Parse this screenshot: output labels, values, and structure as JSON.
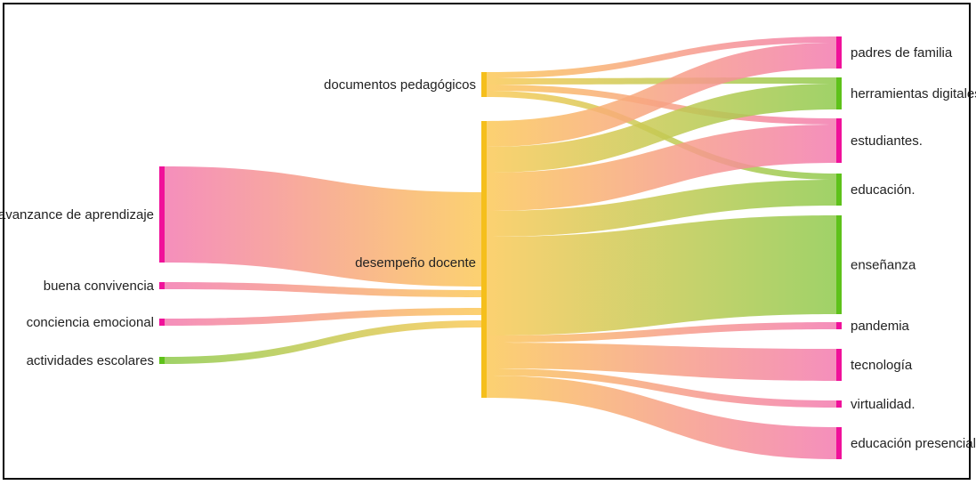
{
  "diagram": {
    "type": "sankey",
    "colors": {
      "pink": "#f0119a",
      "orange": "#f5bf1c",
      "green": "#5ec21a",
      "link_pink": "#f37bb0",
      "link_orange": "#fbc958",
      "link_green": "#8fca4e"
    },
    "nodes": [
      {
        "id": "avanzance",
        "label": "avanzance de aprendizaje",
        "color": "pink"
      },
      {
        "id": "buena",
        "label": "buena convivencia",
        "color": "pink"
      },
      {
        "id": "conciencia",
        "label": "conciencia emocional",
        "color": "pink"
      },
      {
        "id": "actividades",
        "label": "actividades escolares",
        "color": "green"
      },
      {
        "id": "documentos",
        "label": "documentos pedagógicos",
        "color": "orange"
      },
      {
        "id": "desempeno",
        "label": "desempeño docente",
        "color": "orange"
      },
      {
        "id": "padres",
        "label": "padres de familia",
        "color": "pink"
      },
      {
        "id": "herramientas",
        "label": "herramientas digitales",
        "color": "green"
      },
      {
        "id": "estudiantes",
        "label": "estudiantes.",
        "color": "pink"
      },
      {
        "id": "educacion",
        "label": "educación.",
        "color": "green"
      },
      {
        "id": "ensenanza",
        "label": "enseñanza",
        "color": "green"
      },
      {
        "id": "pandemia",
        "label": "pandemia",
        "color": "pink"
      },
      {
        "id": "tecnologia",
        "label": "tecnología",
        "color": "pink"
      },
      {
        "id": "virtualidad",
        "label": "virtualidad.",
        "color": "pink"
      },
      {
        "id": "presencial",
        "label": "educación presencial",
        "color": "pink"
      }
    ],
    "links": [
      {
        "source": "avanzance",
        "target": "desempeno",
        "value": 27
      },
      {
        "source": "buena",
        "target": "desempeno",
        "value": 2
      },
      {
        "source": "conciencia",
        "target": "desempeno",
        "value": 2
      },
      {
        "source": "actividades",
        "target": "desempeno",
        "value": 2
      },
      {
        "source": "documentos",
        "target": "padres",
        "value": 2
      },
      {
        "source": "documentos",
        "target": "herramientas",
        "value": 2
      },
      {
        "source": "documentos",
        "target": "estudiantes",
        "value": 2
      },
      {
        "source": "documentos",
        "target": "educacion",
        "value": 2
      },
      {
        "source": "desempeno",
        "target": "padres",
        "value": 7
      },
      {
        "source": "desempeno",
        "target": "herramientas",
        "value": 7
      },
      {
        "source": "desempeno",
        "target": "estudiantes",
        "value": 10
      },
      {
        "source": "desempeno",
        "target": "educacion",
        "value": 7
      },
      {
        "source": "desempeno",
        "target": "ensenanza",
        "value": 27
      },
      {
        "source": "desempeno",
        "target": "pandemia",
        "value": 2
      },
      {
        "source": "desempeno",
        "target": "tecnologia",
        "value": 9
      },
      {
        "source": "desempeno",
        "target": "virtualidad",
        "value": 2
      },
      {
        "source": "desempeno",
        "target": "presencial",
        "value": 9
      }
    ]
  }
}
